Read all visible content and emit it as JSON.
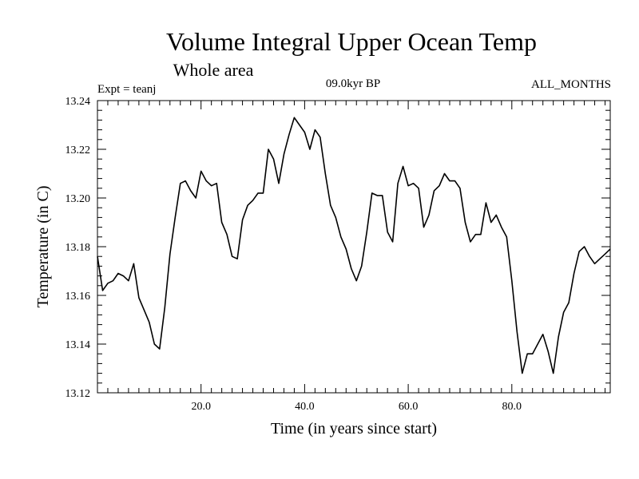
{
  "chart_data": {
    "type": "line",
    "title": "Volume Integral Upper Ocean Temp",
    "subtitle": "Whole area",
    "left_note": "Expt = teanj",
    "center_note": "09.0kyr BP",
    "right_note": "ALL_MONTHS",
    "xlabel": "Time (in years since start)",
    "ylabel": "Temperature (in C)",
    "xlim": [
      0,
      99
    ],
    "ylim": [
      13.12,
      13.24
    ],
    "x_ticks": [
      20.0,
      40.0,
      60.0,
      80.0
    ],
    "x_tick_labels": [
      "20.0",
      "40.0",
      "60.0",
      "80.0"
    ],
    "y_ticks": [
      13.12,
      13.14,
      13.16,
      13.18,
      13.2,
      13.22,
      13.24
    ],
    "y_tick_labels": [
      "13.12",
      "13.14",
      "13.16",
      "13.18",
      "13.20",
      "13.22",
      "13.24"
    ],
    "grid": false,
    "series": [
      {
        "name": "Temperature",
        "x": [
          0,
          1,
          2,
          3,
          4,
          5,
          6,
          7,
          8,
          9,
          10,
          11,
          12,
          13,
          14,
          15,
          16,
          17,
          18,
          19,
          20,
          21,
          22,
          23,
          24,
          25,
          26,
          27,
          28,
          29,
          30,
          31,
          32,
          33,
          34,
          35,
          36,
          37,
          38,
          39,
          40,
          41,
          42,
          43,
          44,
          45,
          46,
          47,
          48,
          49,
          50,
          51,
          52,
          53,
          54,
          55,
          56,
          57,
          58,
          59,
          60,
          61,
          62,
          63,
          64,
          65,
          66,
          67,
          68,
          69,
          70,
          71,
          72,
          73,
          74,
          75,
          76,
          77,
          78,
          79,
          80,
          81,
          82,
          83,
          84,
          85,
          86,
          87,
          88,
          89,
          90,
          91,
          92,
          93,
          94,
          95,
          96,
          97,
          98,
          99
        ],
        "values": [
          13.176,
          13.162,
          13.165,
          13.166,
          13.169,
          13.168,
          13.166,
          13.173,
          13.159,
          13.154,
          13.149,
          13.14,
          13.138,
          13.155,
          13.177,
          13.192,
          13.206,
          13.207,
          13.203,
          13.2,
          13.211,
          13.207,
          13.205,
          13.206,
          13.19,
          13.185,
          13.176,
          13.175,
          13.191,
          13.197,
          13.199,
          13.202,
          13.202,
          13.22,
          13.216,
          13.206,
          13.218,
          13.226,
          13.233,
          13.23,
          13.227,
          13.22,
          13.228,
          13.225,
          13.21,
          13.197,
          13.192,
          13.184,
          13.179,
          13.171,
          13.166,
          13.172,
          13.186,
          13.202,
          13.201,
          13.201,
          13.186,
          13.182,
          13.206,
          13.213,
          13.205,
          13.206,
          13.204,
          13.188,
          13.193,
          13.203,
          13.205,
          13.21,
          13.207,
          13.207,
          13.204,
          13.19,
          13.182,
          13.185,
          13.185,
          13.198,
          13.19,
          13.193,
          13.188,
          13.184,
          13.166,
          13.145,
          13.128,
          13.136,
          13.136,
          13.14,
          13.144,
          13.137,
          13.128,
          13.143,
          13.153,
          13.157,
          13.169,
          13.178,
          13.18,
          13.176,
          13.173,
          13.175,
          13.177,
          13.179
        ]
      }
    ]
  }
}
